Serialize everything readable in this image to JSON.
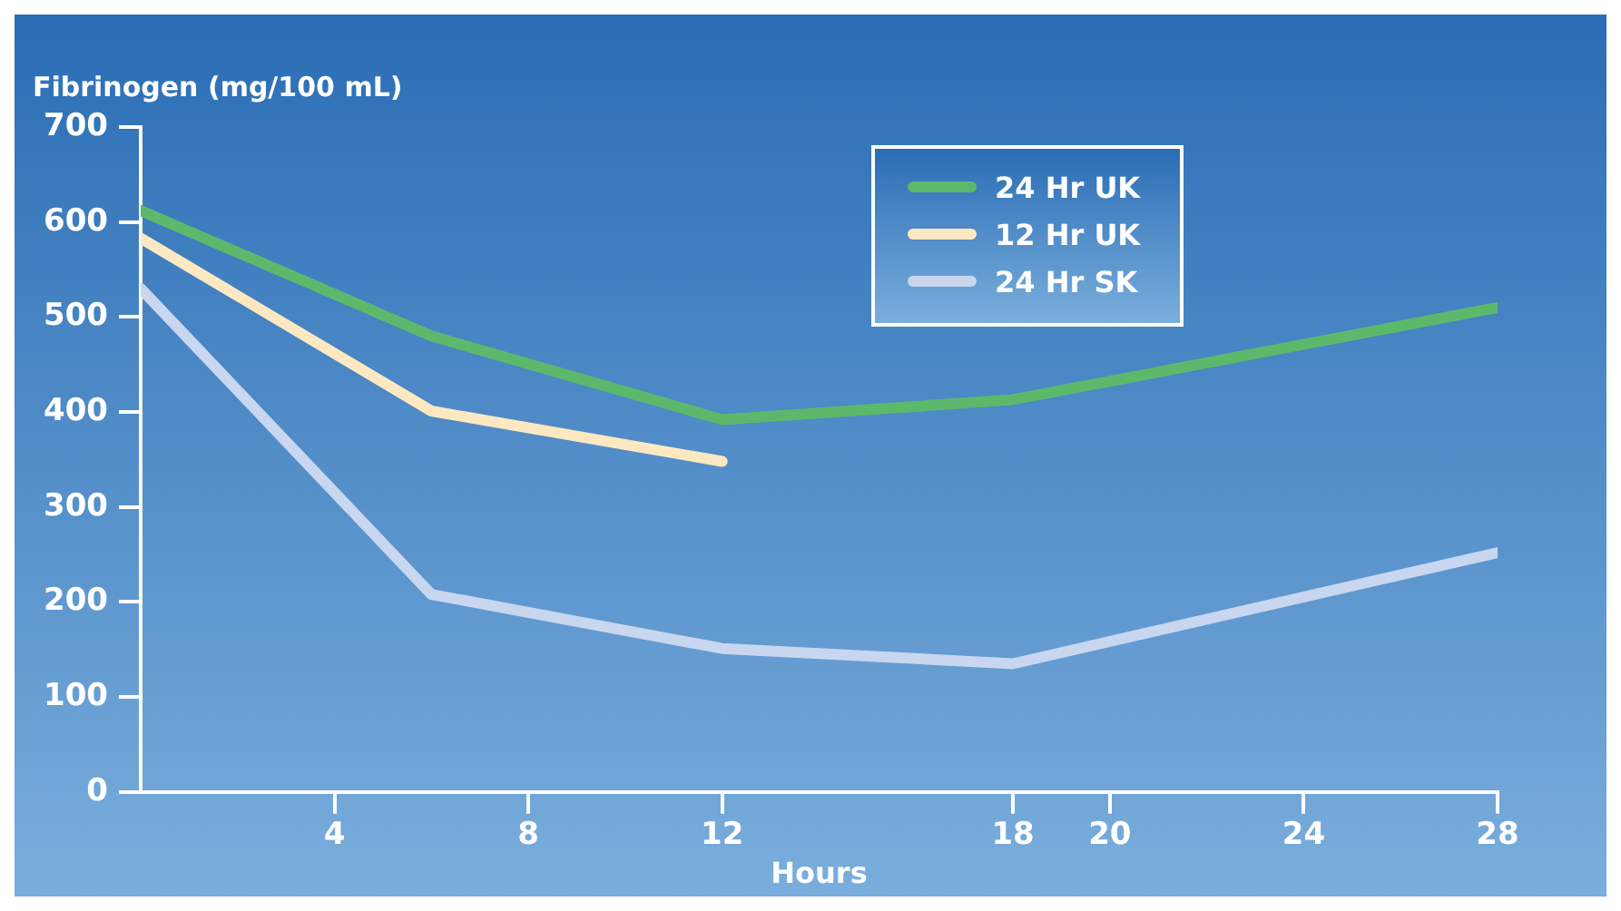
{
  "chart_data": {
    "type": "line",
    "ylabel": "Fibrinogen (mg/100 mL)",
    "xlabel": "Hours",
    "xlim": [
      0,
      28
    ],
    "xticks": [
      4,
      8,
      12,
      18,
      20,
      24,
      28
    ],
    "ylim": [
      0,
      700
    ],
    "yticks": [
      0,
      100,
      200,
      300,
      400,
      500,
      600,
      700
    ],
    "legend": "top right",
    "grid": false,
    "marker": "none",
    "line_style": "solid",
    "series": [
      {
        "name": "24 Hr UK",
        "color": "#5cb96c",
        "x": [
          0,
          6,
          12,
          18,
          28
        ],
        "values": [
          612,
          480,
          392,
          413,
          510
        ]
      },
      {
        "name": "12 Hr UK",
        "color": "#fde8c2",
        "x": [
          0,
          6,
          12
        ],
        "values": [
          583,
          401,
          348
        ]
      },
      {
        "name": "24 Hr SK",
        "color": "#c8d6f0",
        "x": [
          0,
          6,
          12,
          18,
          28
        ],
        "values": [
          530,
          208,
          151,
          135,
          252
        ]
      }
    ]
  }
}
